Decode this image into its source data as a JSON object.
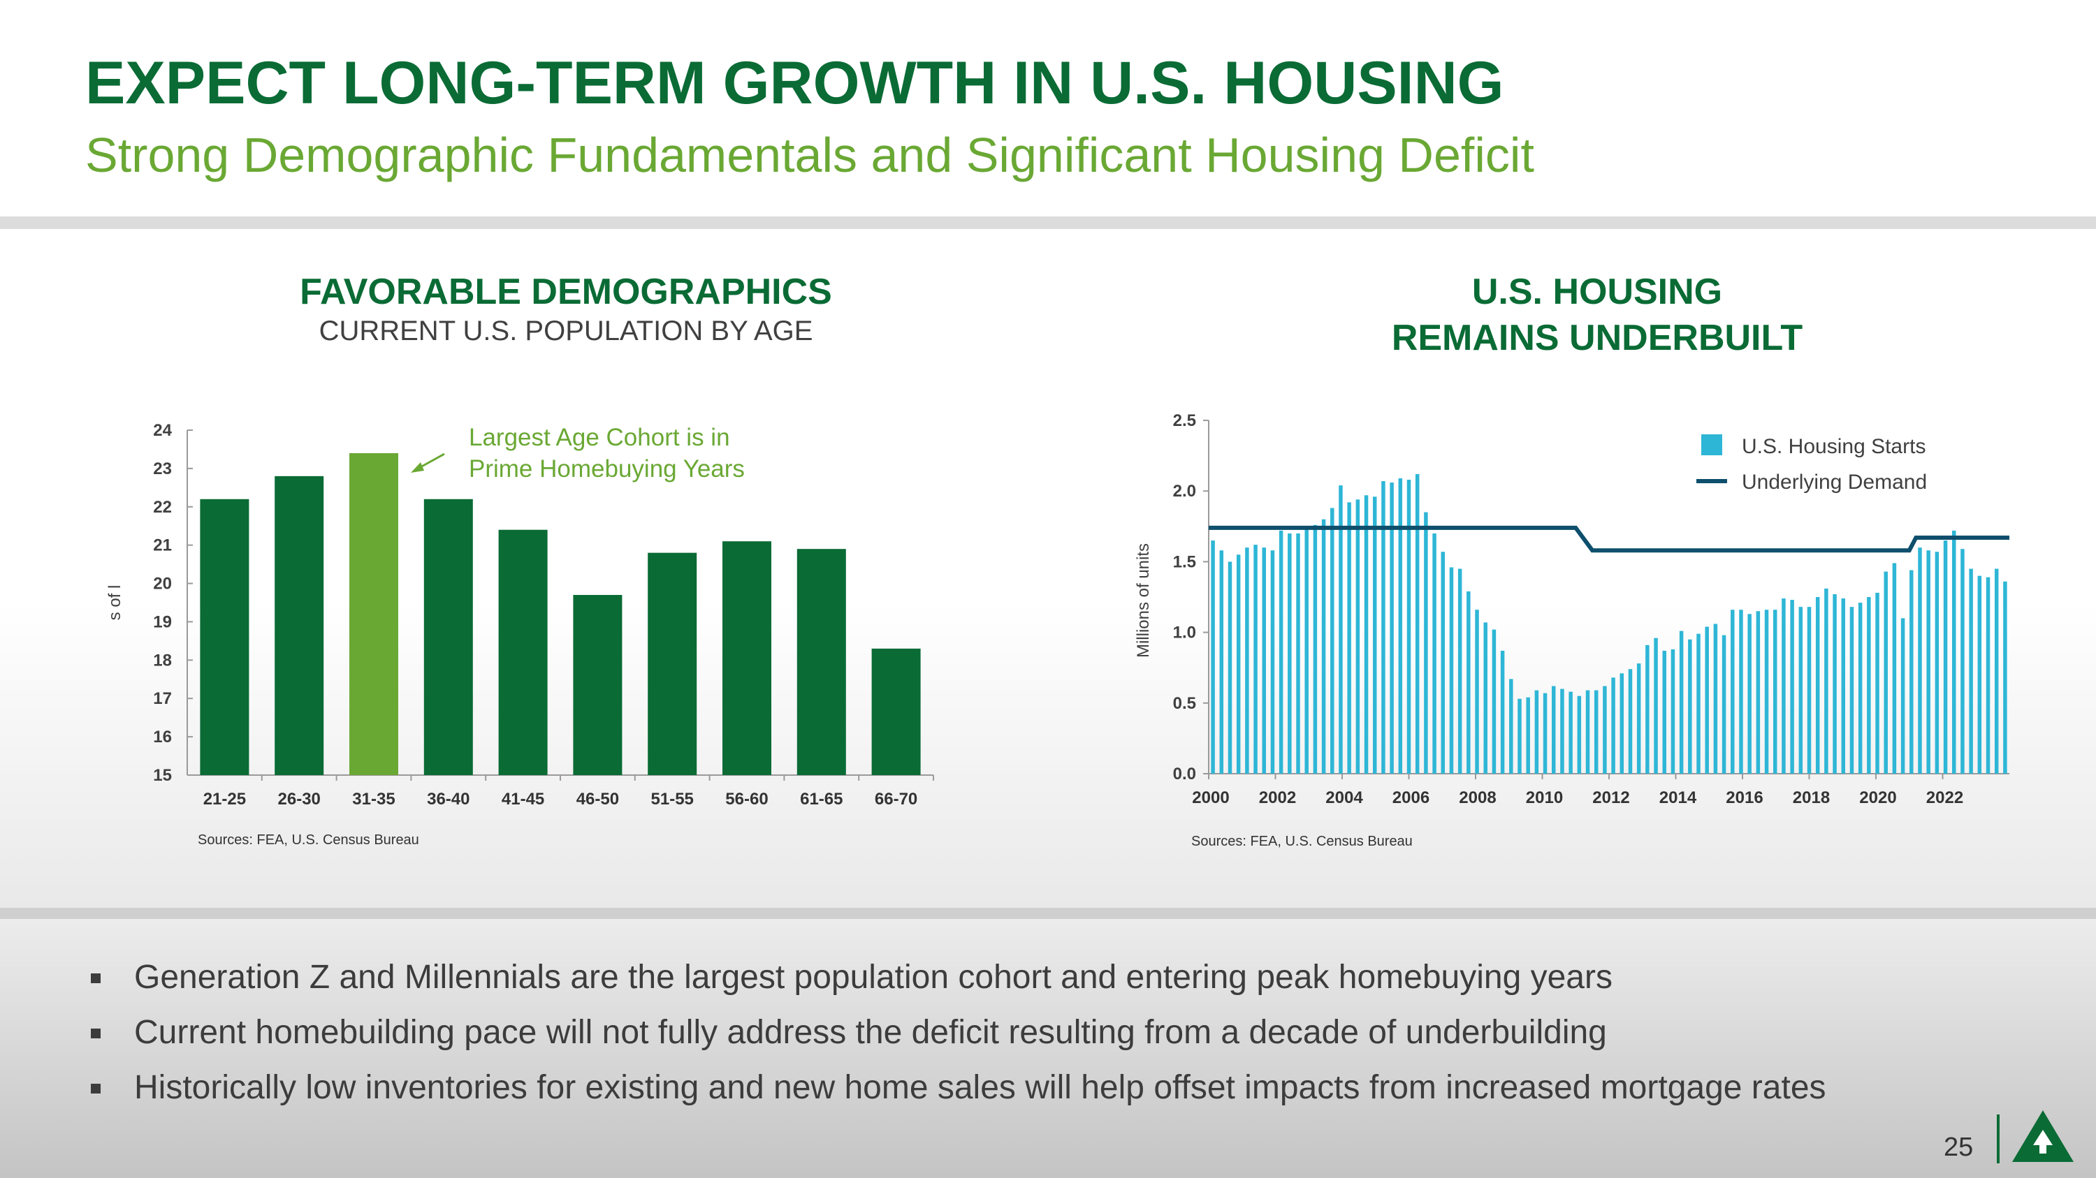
{
  "slide": {
    "title": "EXPECT LONG-TERM GROWTH IN U.S. HOUSING",
    "subtitle": "Strong Demographic Fundamentals and Significant Housing Deficit",
    "page_number": "25"
  },
  "colors": {
    "dark_green": "#0a6b35",
    "light_green": "#6aa834",
    "bar_blue": "#2eb6d6",
    "demand_line": "#0d4f6c"
  },
  "chart_data": [
    {
      "type": "bar",
      "title": "FAVORABLE DEMOGRAPHICS",
      "subtitle": "CURRENT U.S. POPULATION BY AGE",
      "ylabel": "s of l",
      "ylim": [
        15,
        24
      ],
      "yticks": [
        "24",
        "23",
        "22",
        "21",
        "20",
        "19",
        "18",
        "17",
        "16",
        "15"
      ],
      "categories": [
        "21-25",
        "26-30",
        "31-35",
        "36-40",
        "41-45",
        "46-50",
        "51-55",
        "56-60",
        "61-65",
        "66-70"
      ],
      "values": [
        22.2,
        22.8,
        23.4,
        22.2,
        21.4,
        19.7,
        20.8,
        21.1,
        20.9,
        18.3
      ],
      "highlight_index": 2,
      "annotation": [
        "Largest Age Cohort is in",
        "Prime Homebuying Years"
      ],
      "source": "Sources: FEA, U.S. Census Bureau"
    },
    {
      "type": "bar",
      "title": [
        "U.S. HOUSING",
        "REMAINS UNDERBUILT"
      ],
      "ylabel": "Millions of units",
      "ylim": [
        0,
        2.5
      ],
      "yticks": [
        "2.5",
        "2.0",
        "1.5",
        "1.0",
        "0.5",
        "0.0"
      ],
      "xticks": [
        "2000",
        "2002",
        "2004",
        "2006",
        "2008",
        "2010",
        "2012",
        "2014",
        "2016",
        "2018",
        "2020",
        "2022"
      ],
      "x_start_year": 2000,
      "x_end_year": 2024,
      "series": [
        {
          "name": "U.S. Housing Starts",
          "type": "bar",
          "values": [
            1.65,
            1.58,
            1.5,
            1.55,
            1.6,
            1.62,
            1.6,
            1.58,
            1.72,
            1.7,
            1.7,
            1.73,
            1.76,
            1.8,
            1.88,
            2.04,
            1.92,
            1.94,
            1.97,
            1.96,
            2.07,
            2.06,
            2.09,
            2.08,
            2.12,
            1.85,
            1.7,
            1.57,
            1.46,
            1.45,
            1.29,
            1.16,
            1.07,
            1.02,
            0.87,
            0.67,
            0.53,
            0.54,
            0.59,
            0.57,
            0.62,
            0.6,
            0.58,
            0.55,
            0.59,
            0.59,
            0.62,
            0.68,
            0.71,
            0.74,
            0.78,
            0.91,
            0.96,
            0.87,
            0.88,
            1.01,
            0.95,
            0.99,
            1.04,
            1.06,
            0.98,
            1.16,
            1.16,
            1.13,
            1.15,
            1.16,
            1.16,
            1.24,
            1.23,
            1.18,
            1.18,
            1.25,
            1.31,
            1.27,
            1.24,
            1.18,
            1.21,
            1.25,
            1.28,
            1.43,
            1.49,
            1.1,
            1.44,
            1.6,
            1.58,
            1.57,
            1.65,
            1.72,
            1.59,
            1.45,
            1.4,
            1.39,
            1.45,
            1.36
          ]
        },
        {
          "name": "Underlying Demand",
          "type": "line",
          "segments": [
            {
              "x": [
                2000,
                2011
              ],
              "y": 1.74
            },
            {
              "x": [
                2011.5,
                2021
              ],
              "y": 1.58
            },
            {
              "x": [
                2021.2,
                2024
              ],
              "y": 1.67
            }
          ]
        }
      ],
      "source": "Sources: FEA, U.S. Census Bureau"
    }
  ],
  "bullets": [
    "Generation Z and Millennials are the largest population cohort and entering peak homebuying years",
    "Current homebuilding pace will not fully address the deficit resulting from a decade of underbuilding",
    "Historically low inventories for existing and new home sales will help offset impacts from increased mortgage rates"
  ]
}
